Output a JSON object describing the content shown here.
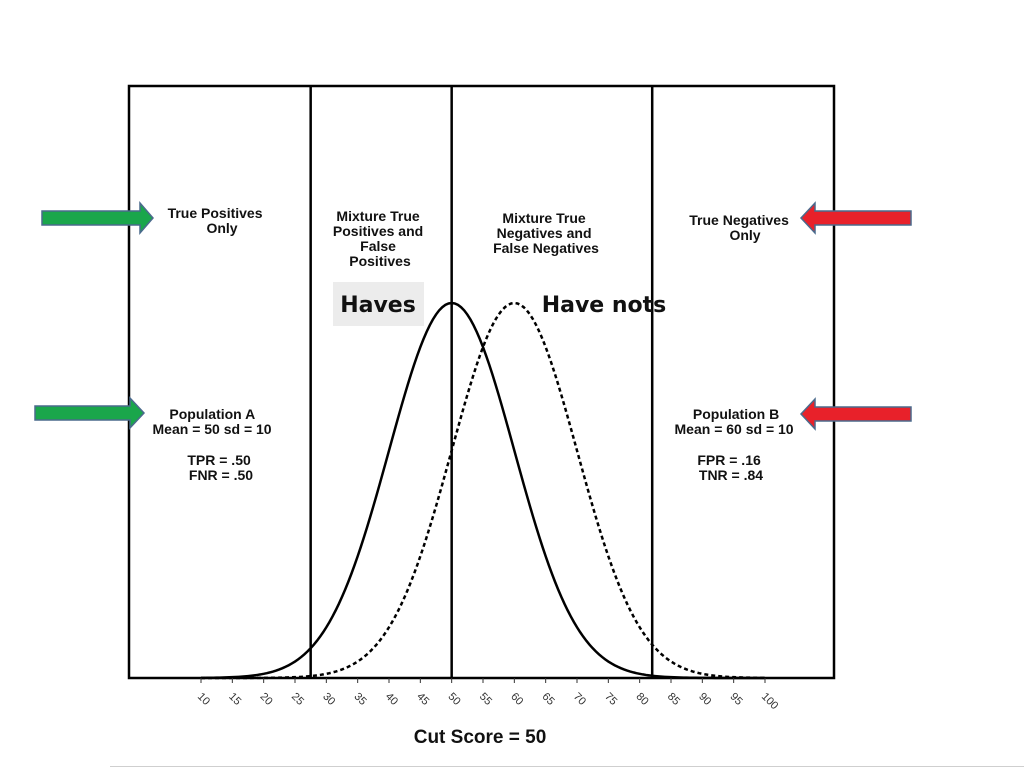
{
  "chart_data": {
    "type": "line",
    "xlabel": "Cut Score = 50",
    "ylabel": "",
    "xlim": [
      0,
      100
    ],
    "x_ticks": [
      "10",
      "15",
      "20",
      "25",
      "30",
      "35",
      "40",
      "45",
      "50",
      "55",
      "60",
      "65",
      "70",
      "75",
      "80",
      "85",
      "90",
      "95",
      "100"
    ],
    "cut_score": 50,
    "boundaries": [
      27.5,
      50,
      82
    ],
    "grid": false,
    "series": [
      {
        "name": "Haves",
        "mean": 50,
        "sd": 10,
        "style": "solid"
      },
      {
        "name": "Have nots",
        "mean": 60,
        "sd": 10,
        "style": "dotted"
      }
    ],
    "regions": [
      {
        "lines": [
          "True Positives",
          "Only"
        ]
      },
      {
        "lines": [
          "Mixture True",
          "Positives and",
          "False",
          "Positives"
        ]
      },
      {
        "lines": [
          "Mixture True",
          "Negatives and",
          "False Negatives"
        ]
      },
      {
        "lines": [
          "True Negatives",
          "Only"
        ]
      }
    ],
    "population_a": {
      "lines": [
        "Population A",
        "Mean = 50  sd = 10",
        "",
        "TPR = .50",
        "FNR = .50"
      ]
    },
    "population_b": {
      "lines": [
        "Population B",
        "Mean = 60  sd = 10",
        "",
        "FPR = .16",
        "TNR = .84"
      ]
    },
    "curve_labels": {
      "haves": "Haves",
      "have_nots": "Have nots"
    }
  },
  "colors": {
    "green_arrow": "#1aa64b",
    "red_arrow": "#e8212a",
    "arrow_outline": "#4a6a8c",
    "haves_box": "#ececec"
  }
}
